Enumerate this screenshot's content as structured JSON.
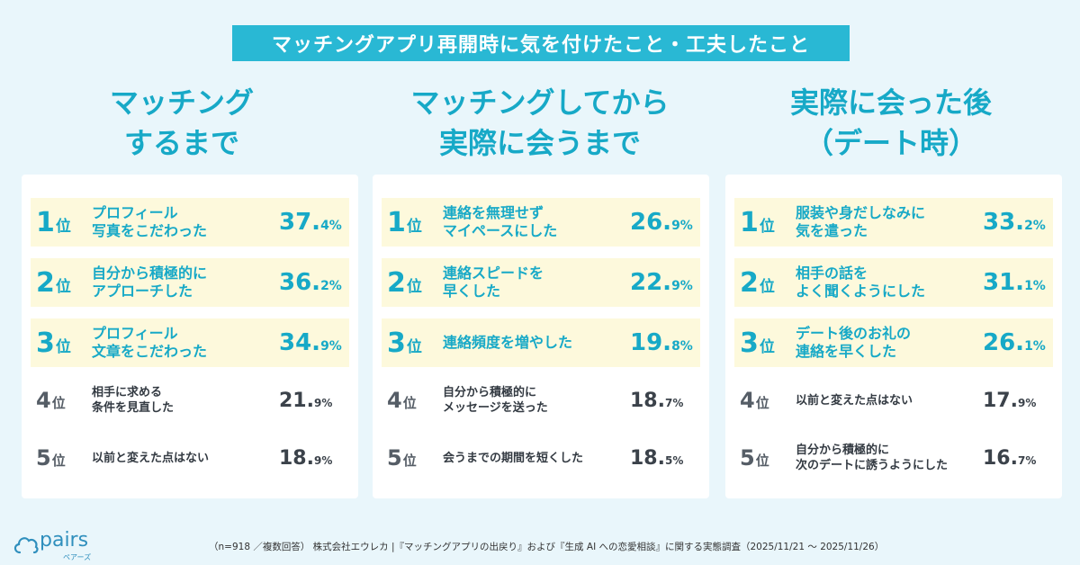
{
  "title": "マッチングアプリ再開時に気を付けたこと・工夫したこと",
  "columns": [
    {
      "heading": [
        "マッチング",
        "するまで"
      ],
      "items": [
        {
          "rank": "1",
          "unit": "位",
          "label": [
            "プロフィール",
            "写真をこだわった"
          ],
          "pct_int": "37.",
          "pct_dec": "4%"
        },
        {
          "rank": "2",
          "unit": "位",
          "label": [
            "自分から積極的に",
            "アプローチした"
          ],
          "pct_int": "36.",
          "pct_dec": "2%"
        },
        {
          "rank": "3",
          "unit": "位",
          "label": [
            "プロフィール",
            "文章をこだわった"
          ],
          "pct_int": "34.",
          "pct_dec": "9%"
        },
        {
          "rank": "4",
          "unit": "位",
          "label": [
            "相手に求める",
            "条件を見直した"
          ],
          "pct_int": "21.",
          "pct_dec": "9%"
        },
        {
          "rank": "5",
          "unit": "位",
          "label": [
            "以前と変えた点はない",
            ""
          ],
          "pct_int": "18.",
          "pct_dec": "9%"
        }
      ]
    },
    {
      "heading": [
        "マッチングしてから",
        "実際に会うまで"
      ],
      "items": [
        {
          "rank": "1",
          "unit": "位",
          "label": [
            "連絡を無理せず",
            "マイペースにした"
          ],
          "pct_int": "26.",
          "pct_dec": "9%"
        },
        {
          "rank": "2",
          "unit": "位",
          "label": [
            "連絡スピードを",
            "早くした"
          ],
          "pct_int": "22.",
          "pct_dec": "9%"
        },
        {
          "rank": "3",
          "unit": "位",
          "label": [
            "連絡頻度を増やした",
            ""
          ],
          "pct_int": "19.",
          "pct_dec": "8%"
        },
        {
          "rank": "4",
          "unit": "位",
          "label": [
            "自分から積極的に",
            "メッセージを送った"
          ],
          "pct_int": "18.",
          "pct_dec": "7%"
        },
        {
          "rank": "5",
          "unit": "位",
          "label": [
            "会うまでの期間を短くした",
            ""
          ],
          "pct_int": "18.",
          "pct_dec": "5%"
        }
      ]
    },
    {
      "heading": [
        "実際に会った後",
        "（デート時）"
      ],
      "items": [
        {
          "rank": "1",
          "unit": "位",
          "label": [
            "服装や身だしなみに",
            "気を遣った"
          ],
          "pct_int": "33.",
          "pct_dec": "2%"
        },
        {
          "rank": "2",
          "unit": "位",
          "label": [
            "相手の話を",
            "よく聞くようにした"
          ],
          "pct_int": "31.",
          "pct_dec": "1%"
        },
        {
          "rank": "3",
          "unit": "位",
          "label": [
            "デート後のお礼の",
            "連絡を早くした"
          ],
          "pct_int": "26.",
          "pct_dec": "1%"
        },
        {
          "rank": "4",
          "unit": "位",
          "label": [
            "以前と変えた点はない",
            ""
          ],
          "pct_int": "17.",
          "pct_dec": "9%"
        },
        {
          "rank": "5",
          "unit": "位",
          "label": [
            "自分から積極的に",
            "次のデートに誘うようにした"
          ],
          "pct_int": "16.",
          "pct_dec": "7%"
        }
      ]
    }
  ],
  "logo": {
    "text": "pairs",
    "sub": "ペアーズ",
    "icon": "cloud-icon"
  },
  "footer": "（n=918 ／複数回答） 株式会社エウレカ |『マッチングアプリの出戻り』および『生成 AI への恋愛相談』に関する実態調査（2025/11/21 ～ 2025/11/26）",
  "colors": {
    "accent": "#29b8d4",
    "highlight": "#fdf9dc",
    "background": "#e9f6fb"
  }
}
